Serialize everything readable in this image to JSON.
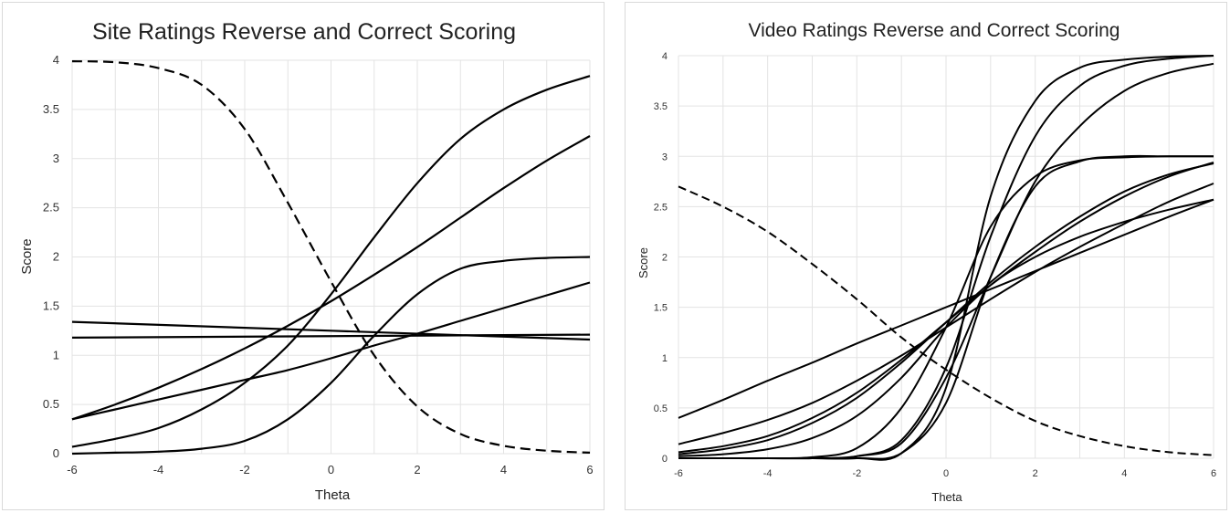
{
  "chart_data": [
    {
      "type": "line",
      "title": "Site Ratings Reverse and Correct Scoring",
      "xlabel": "Theta",
      "ylabel": "Score",
      "xlim": [
        -6,
        6
      ],
      "ylim": [
        0,
        4
      ],
      "xticks": [
        "-6",
        "-4",
        "-2",
        "0",
        "2",
        "4",
        "6"
      ],
      "yticks": [
        "0",
        "0.5",
        "1",
        "1.5",
        "2",
        "2.5",
        "3",
        "3.5",
        "4"
      ],
      "grid": true,
      "legend": "none",
      "line_color": "#000000",
      "series": [
        {
          "style": "dashed",
          "x": [
            -6,
            -5,
            -4,
            -3,
            -2,
            -1,
            0,
            1,
            2,
            3,
            4,
            5,
            6
          ],
          "y": [
            3.99,
            3.98,
            3.92,
            3.75,
            3.3,
            2.55,
            1.75,
            1.0,
            0.48,
            0.2,
            0.08,
            0.03,
            0.01
          ]
        },
        {
          "style": "solid",
          "x": [
            -6,
            -5,
            -4,
            -3,
            -2,
            -1,
            0,
            1,
            2,
            3,
            4,
            5,
            6
          ],
          "y": [
            0.07,
            0.15,
            0.26,
            0.45,
            0.72,
            1.1,
            1.62,
            2.2,
            2.75,
            3.2,
            3.5,
            3.7,
            3.84
          ]
        },
        {
          "style": "solid",
          "x": [
            -6,
            -5,
            -4,
            -3,
            -2,
            -1,
            0,
            1,
            2,
            3,
            4,
            5,
            6
          ],
          "y": [
            0.35,
            0.5,
            0.67,
            0.86,
            1.07,
            1.3,
            1.55,
            1.82,
            2.1,
            2.4,
            2.7,
            2.98,
            3.23
          ]
        },
        {
          "style": "solid",
          "x": [
            -6,
            -5,
            -4,
            -3,
            -2,
            -1,
            0,
            1,
            2,
            3,
            4,
            5,
            6
          ],
          "y": [
            0.0,
            0.01,
            0.02,
            0.05,
            0.13,
            0.35,
            0.72,
            1.2,
            1.62,
            1.88,
            1.96,
            1.99,
            2.0
          ]
        },
        {
          "style": "solid",
          "x": [
            -6,
            -5,
            -4,
            -3,
            -2,
            -1,
            0,
            1,
            2,
            3,
            4,
            5,
            6
          ],
          "y": [
            0.35,
            0.45,
            0.55,
            0.65,
            0.75,
            0.85,
            0.97,
            1.1,
            1.22,
            1.35,
            1.48,
            1.61,
            1.74
          ]
        },
        {
          "style": "solid",
          "x": [
            -6,
            6
          ],
          "y": [
            1.34,
            1.16
          ]
        },
        {
          "style": "solid",
          "x": [
            -6,
            6
          ],
          "y": [
            1.18,
            1.21
          ]
        }
      ]
    },
    {
      "type": "line",
      "title": "Video Ratings Reverse and Correct Scoring",
      "xlabel": "Theta",
      "ylabel": "Score",
      "xlim": [
        -6,
        6
      ],
      "ylim": [
        0,
        4
      ],
      "xticks": [
        "-6",
        "-4",
        "-2",
        "0",
        "2",
        "4",
        "6"
      ],
      "yticks": [
        "0",
        "0.5",
        "1",
        "1.5",
        "2",
        "2.5",
        "3",
        "3.5",
        "4"
      ],
      "grid": true,
      "legend": "none",
      "line_color": "#000000",
      "series": [
        {
          "style": "dashed",
          "x": [
            -6,
            -5,
            -4,
            -3,
            -2,
            -1,
            0,
            1,
            2,
            3,
            4,
            5,
            6
          ],
          "y": [
            2.7,
            2.5,
            2.25,
            1.93,
            1.58,
            1.2,
            0.88,
            0.6,
            0.37,
            0.22,
            0.12,
            0.06,
            0.03
          ]
        },
        {
          "style": "solid",
          "x": [
            -6,
            -5,
            -4,
            -3,
            -2,
            -1,
            0,
            1,
            2,
            3,
            4,
            5,
            6
          ],
          "y": [
            0.0,
            0.0,
            0.0,
            0.0,
            0.0,
            0.05,
            0.7,
            2.6,
            3.55,
            3.88,
            3.96,
            3.99,
            4.0
          ]
        },
        {
          "style": "solid",
          "x": [
            -6,
            -5,
            -4,
            -3,
            -2,
            -1,
            0,
            1,
            2,
            3,
            4,
            5,
            6
          ],
          "y": [
            0.0,
            0.0,
            0.0,
            0.0,
            0.02,
            0.18,
            0.9,
            2.2,
            3.2,
            3.7,
            3.9,
            3.97,
            4.0
          ]
        },
        {
          "style": "solid",
          "x": [
            -6,
            -5,
            -4,
            -3,
            -2,
            -1,
            0,
            1,
            2,
            3,
            4,
            5,
            6
          ],
          "y": [
            0.0,
            0.0,
            0.0,
            0.0,
            0.02,
            0.15,
            0.8,
            1.8,
            2.75,
            3.3,
            3.65,
            3.83,
            3.92
          ]
        },
        {
          "style": "solid",
          "x": [
            -6,
            -5,
            -4,
            -3,
            -2,
            -1,
            0,
            1,
            2,
            3,
            4,
            5,
            6
          ],
          "y": [
            0.0,
            0.0,
            0.0,
            0.01,
            0.1,
            0.5,
            1.3,
            2.3,
            2.8,
            2.96,
            2.99,
            3.0,
            3.0
          ]
        },
        {
          "style": "solid",
          "x": [
            -6,
            -5,
            -4,
            -3,
            -2,
            -1,
            0,
            1,
            2,
            3,
            4,
            5,
            6
          ],
          "y": [
            0.0,
            0.0,
            0.0,
            0.0,
            0.0,
            0.05,
            0.55,
            1.8,
            2.7,
            2.95,
            3.0,
            3.0,
            3.0
          ]
        },
        {
          "style": "solid",
          "x": [
            -6,
            -5,
            -4,
            -3,
            -2,
            -1,
            0,
            1,
            2,
            3,
            4,
            5,
            6
          ],
          "y": [
            0.04,
            0.09,
            0.18,
            0.35,
            0.6,
            0.95,
            1.35,
            1.75,
            2.1,
            2.4,
            2.65,
            2.82,
            2.93
          ]
        },
        {
          "style": "solid",
          "x": [
            -6,
            -5,
            -4,
            -3,
            -2,
            -1,
            0,
            1,
            2,
            3,
            4,
            5,
            6
          ],
          "y": [
            0.06,
            0.12,
            0.22,
            0.4,
            0.65,
            0.98,
            1.35,
            1.72,
            2.05,
            2.35,
            2.6,
            2.8,
            2.94
          ]
        },
        {
          "style": "solid",
          "x": [
            -6,
            -5,
            -4,
            -3,
            -2,
            -1,
            0,
            1,
            2,
            3,
            4,
            5,
            6
          ],
          "y": [
            0.14,
            0.25,
            0.38,
            0.55,
            0.77,
            1.02,
            1.3,
            1.58,
            1.85,
            2.1,
            2.33,
            2.55,
            2.73
          ]
        },
        {
          "style": "solid",
          "x": [
            -6,
            -5,
            -4,
            -3,
            -2,
            -1,
            0,
            1,
            2,
            3,
            4,
            5,
            6
          ],
          "y": [
            0.4,
            0.58,
            0.77,
            0.95,
            1.14,
            1.32,
            1.5,
            1.68,
            1.86,
            2.04,
            2.22,
            2.4,
            2.57
          ]
        },
        {
          "style": "solid",
          "x": [
            -6,
            -5,
            -4,
            -3,
            -2,
            -1,
            0,
            1,
            2,
            3,
            4,
            5,
            6
          ],
          "y": [
            0.02,
            0.04,
            0.09,
            0.2,
            0.42,
            0.8,
            1.3,
            1.72,
            2.0,
            2.2,
            2.35,
            2.47,
            2.57
          ]
        }
      ]
    }
  ]
}
